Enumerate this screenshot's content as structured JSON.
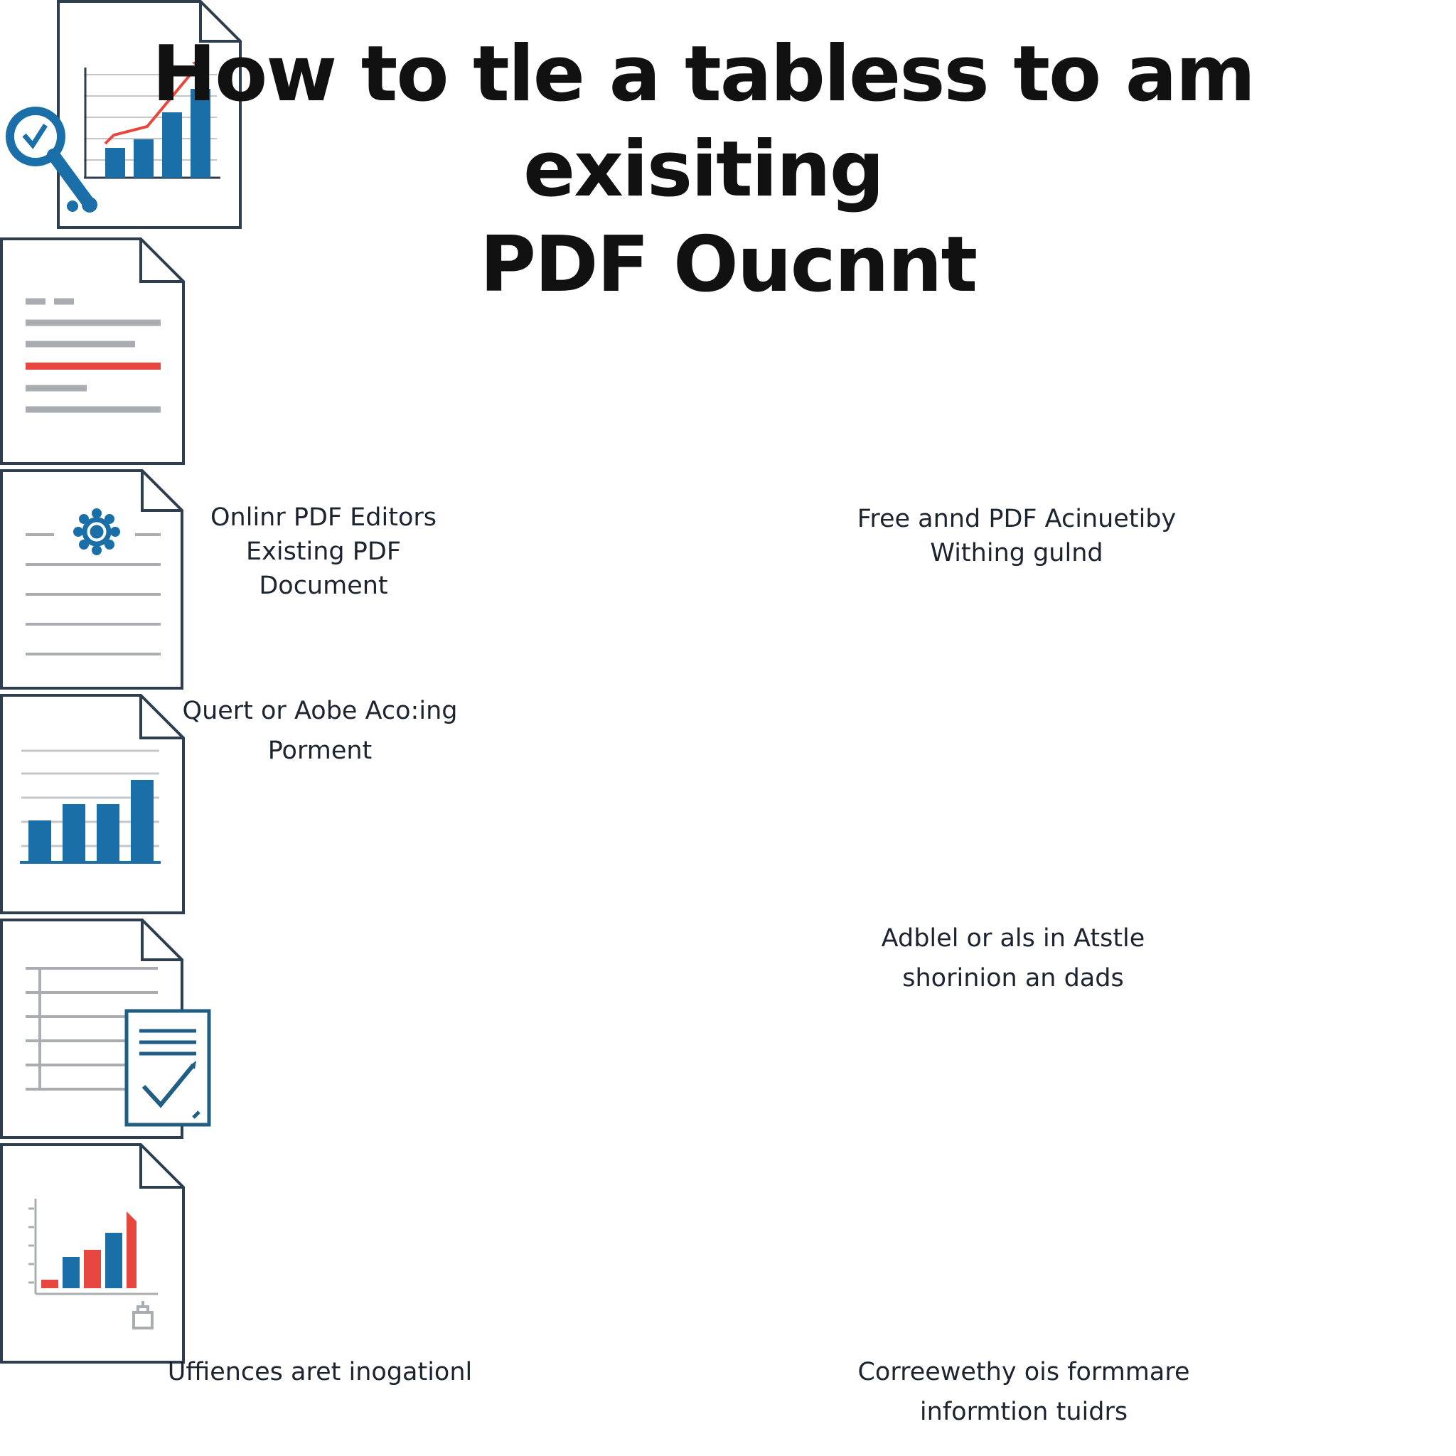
{
  "title": {
    "line1": "How to tle a tabless to am exisiting",
    "line2": "PDF Oucnnt"
  },
  "colors": {
    "outline": "#2e3e4f",
    "blue": "#1b6fa8",
    "red": "#e8473f",
    "gray": "#a9adb1"
  },
  "cards": [
    {
      "icon": "document-chart-magnifier-icon",
      "caption": [
        "Onlinr PDF Editors",
        "Existing PDF",
        "Document"
      ]
    },
    {
      "icon": "document-text-lines-icon",
      "caption": [
        "Free annd PDF Acinuetiby",
        "Withing gulnd"
      ]
    },
    {
      "icon": "document-gear-lines-icon",
      "caption": [
        "Quert or Aobe Aco:ing",
        "Porment"
      ]
    },
    {
      "icon": "document-bar-chart-icon",
      "caption": [
        "Adblel or als in Atstle",
        "shorinion an dads"
      ]
    },
    {
      "icon": "document-checklist-icon",
      "caption": [
        "Uffiences aret inogationl"
      ]
    },
    {
      "icon": "document-color-chart-lock-icon",
      "caption": [
        "Correewethy ois formmare",
        "informtion tuidrs"
      ]
    }
  ]
}
